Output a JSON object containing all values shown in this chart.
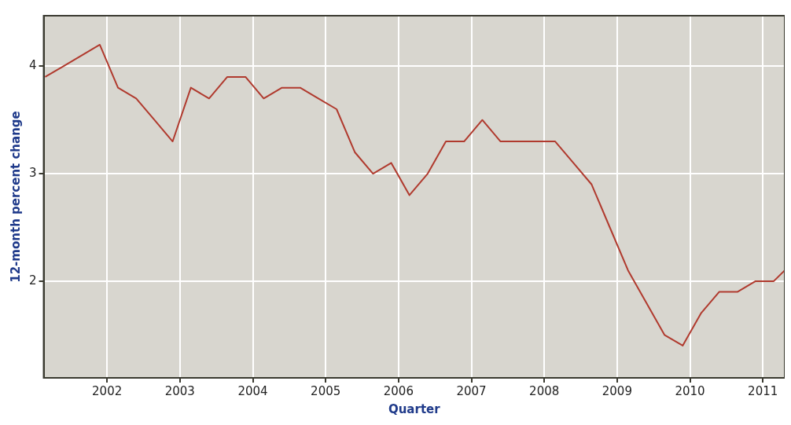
{
  "chart_data": {
    "type": "line",
    "xlabel": "Quarter",
    "ylabel": "12-month percent change",
    "x": [
      2001.15,
      2001.4,
      2001.65,
      2001.9,
      2002.15,
      2002.4,
      2002.65,
      2002.9,
      2003.15,
      2003.4,
      2003.65,
      2003.9,
      2004.15,
      2004.4,
      2004.65,
      2004.9,
      2005.15,
      2005.4,
      2005.65,
      2005.9,
      2006.15,
      2006.4,
      2006.65,
      2006.9,
      2007.15,
      2007.4,
      2007.65,
      2007.9,
      2008.15,
      2008.4,
      2008.65,
      2008.9,
      2009.15,
      2009.4,
      2009.65,
      2009.9,
      2010.15,
      2010.4,
      2010.65,
      2010.9,
      2011.15,
      2011.3
    ],
    "series": [
      {
        "color": "#b03a2e",
        "values": [
          3.9,
          4.0,
          4.1,
          4.2,
          3.8,
          3.7,
          3.5,
          3.3,
          3.8,
          3.7,
          3.9,
          3.9,
          3.7,
          3.8,
          3.8,
          3.7,
          3.6,
          3.2,
          3.0,
          3.1,
          2.8,
          3.0,
          3.3,
          3.3,
          3.5,
          3.3,
          3.3,
          3.3,
          3.3,
          3.1,
          2.9,
          2.5,
          2.1,
          1.8,
          1.5,
          1.4,
          1.7,
          1.9,
          1.9,
          2.0,
          2.0,
          2.1
        ]
      }
    ],
    "xlim": [
      2001.13,
      2011.3
    ],
    "ylim": [
      1.1,
      4.47
    ],
    "xticks": [
      2002,
      2003,
      2004,
      2005,
      2006,
      2007,
      2008,
      2009,
      2010,
      2011
    ],
    "yticks": [
      2,
      3,
      4
    ],
    "grid": true,
    "legend": false,
    "marker": "none",
    "line_style": "solid"
  }
}
